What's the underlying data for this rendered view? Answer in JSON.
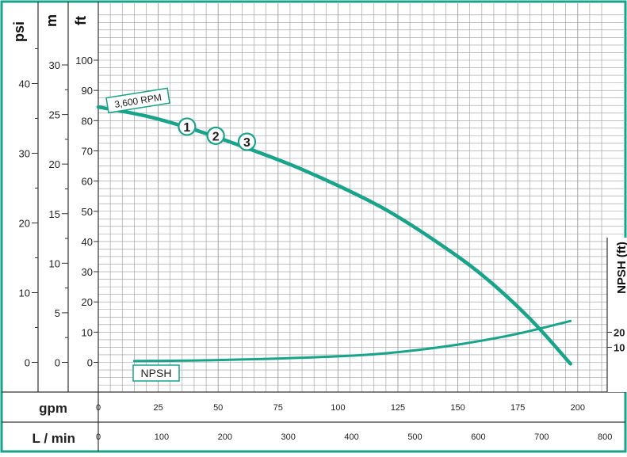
{
  "colors": {
    "frame": "#1aa38a",
    "curve": "#18a48a",
    "grid": "#9a9a9a",
    "text": "#222222"
  },
  "chart_data": {
    "type": "line",
    "axes": {
      "psi": {
        "label": "psi",
        "ticks": [
          0,
          10,
          20,
          30,
          40
        ]
      },
      "m": {
        "label": "m",
        "ticks": [
          0,
          5,
          10,
          15,
          20,
          25,
          30
        ]
      },
      "ft": {
        "label": "ft",
        "ticks": [
          0,
          10,
          20,
          30,
          40,
          50,
          60,
          70,
          80,
          90,
          100
        ],
        "range": [
          -7.5,
          115
        ]
      },
      "npsh": {
        "label": "NPSH (ft)",
        "ticks": [
          10,
          20
        ],
        "range": [
          0,
          100
        ]
      },
      "gpm": {
        "label": "gpm",
        "ticks": [
          0,
          25,
          50,
          75,
          100,
          125,
          150,
          175,
          200
        ],
        "range": [
          0,
          212
        ]
      },
      "lmin": {
        "label": "L / min",
        "ticks": [
          0,
          100,
          200,
          300,
          400,
          500,
          600,
          700,
          800
        ]
      }
    },
    "grid": true,
    "series": [
      {
        "name": "3,600 RPM",
        "axis": "ft",
        "x": [
          0,
          20,
          40,
          60,
          80,
          100,
          120,
          140,
          160,
          180,
          197
        ],
        "y": [
          84.5,
          81.5,
          77,
          71.5,
          65.5,
          58.5,
          50.5,
          40.5,
          29,
          14.5,
          -0.5
        ]
      },
      {
        "name": "NPSH",
        "axis": "npsh",
        "x": [
          15,
          50,
          100,
          125,
          150,
          175,
          197
        ],
        "y": [
          0.9,
          1.5,
          4,
          6.8,
          11.8,
          19,
          27.5
        ]
      }
    ],
    "markers": [
      {
        "label": "1",
        "gpm": 37,
        "ft": 78
      },
      {
        "label": "2",
        "gpm": 49,
        "ft": 75
      },
      {
        "label": "3",
        "gpm": 62,
        "ft": 73
      }
    ]
  }
}
